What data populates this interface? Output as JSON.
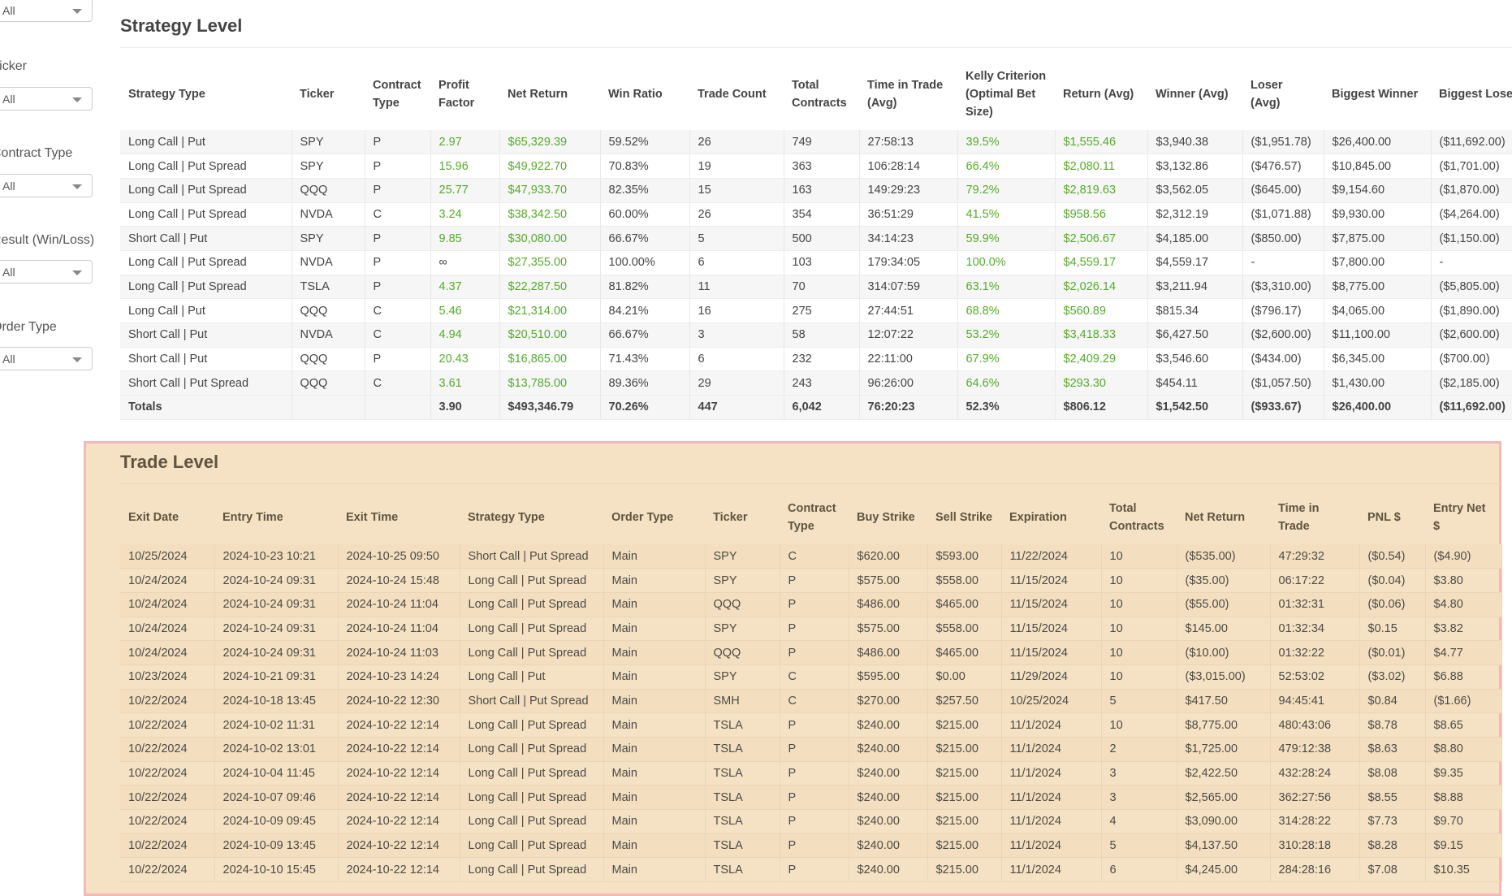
{
  "sidebar": {
    "filters": [
      {
        "label": "",
        "value": "All"
      },
      {
        "label": "Ticker",
        "value": "All"
      },
      {
        "label": "Contract Type",
        "value": "All"
      },
      {
        "label": "Result (Win/Loss)",
        "value": "All"
      },
      {
        "label": "Order Type",
        "value": "All"
      }
    ]
  },
  "strategy": {
    "title": "Strategy Level",
    "columns": [
      "Strategy Type",
      "Ticker",
      "Contract Type",
      "Profit Factor",
      "Net Return",
      "Win Ratio",
      "Trade Count",
      "Total Contracts",
      "Time in Trade (Avg)",
      "Kelly Criterion (Optimal Bet Size)",
      "Return (Avg)",
      "Winner (Avg)",
      "Loser (Avg)",
      "Biggest Winner",
      "Biggest Loser"
    ],
    "rows": [
      [
        "Long Call | Put",
        "SPY",
        "P",
        "2.97",
        "$65,329.39",
        "59.52%",
        "26",
        "749",
        "27:58:13",
        "39.5%",
        "$1,555.46",
        "$3,940.38",
        "($1,951.78)",
        "$26,400.00",
        "($11,692.00)"
      ],
      [
        "Long Call | Put Spread",
        "SPY",
        "P",
        "15.96",
        "$49,922.70",
        "70.83%",
        "19",
        "363",
        "106:28:14",
        "66.4%",
        "$2,080.11",
        "$3,132.86",
        "($476.57)",
        "$10,845.00",
        "($1,701.00)"
      ],
      [
        "Long Call | Put Spread",
        "QQQ",
        "P",
        "25.77",
        "$47,933.70",
        "82.35%",
        "15",
        "163",
        "149:29:23",
        "79.2%",
        "$2,819.63",
        "$3,562.05",
        "($645.00)",
        "$9,154.60",
        "($1,870.00)"
      ],
      [
        "Long Call | Put Spread",
        "NVDA",
        "C",
        "3.24",
        "$38,342.50",
        "60.00%",
        "26",
        "354",
        "36:51:29",
        "41.5%",
        "$958.56",
        "$2,312.19",
        "($1,071.88)",
        "$9,930.00",
        "($4,264.00)"
      ],
      [
        "Short Call | Put",
        "SPY",
        "P",
        "9.85",
        "$30,080.00",
        "66.67%",
        "5",
        "500",
        "34:14:23",
        "59.9%",
        "$2,506.67",
        "$4,185.00",
        "($850.00)",
        "$7,875.00",
        "($1,150.00)"
      ],
      [
        "Long Call | Put Spread",
        "NVDA",
        "P",
        "∞",
        "$27,355.00",
        "100.00%",
        "6",
        "103",
        "179:34:05",
        "100.0%",
        "$4,559.17",
        "$4,559.17",
        "-",
        "$7,800.00",
        "-"
      ],
      [
        "Long Call | Put Spread",
        "TSLA",
        "P",
        "4.37",
        "$22,287.50",
        "81.82%",
        "11",
        "70",
        "314:07:59",
        "63.1%",
        "$2,026.14",
        "$3,211.94",
        "($3,310.00)",
        "$8,775.00",
        "($5,805.00)"
      ],
      [
        "Long Call | Put",
        "QQQ",
        "C",
        "5.46",
        "$21,314.00",
        "84.21%",
        "16",
        "275",
        "27:44:51",
        "68.8%",
        "$560.89",
        "$815.34",
        "($796.17)",
        "$4,065.00",
        "($1,890.00)"
      ],
      [
        "Short Call | Put",
        "NVDA",
        "C",
        "4.94",
        "$20,510.00",
        "66.67%",
        "3",
        "58",
        "12:07:22",
        "53.2%",
        "$3,418.33",
        "$6,427.50",
        "($2,600.00)",
        "$11,100.00",
        "($2,600.00)"
      ],
      [
        "Short Call | Put",
        "QQQ",
        "P",
        "20.43",
        "$16,865.00",
        "71.43%",
        "6",
        "232",
        "22:11:00",
        "67.9%",
        "$2,409.29",
        "$3,546.60",
        "($434.00)",
        "$6,345.00",
        "($700.00)"
      ],
      [
        "Short Call | Put Spread",
        "QQQ",
        "C",
        "3.61",
        "$13,785.00",
        "89.36%",
        "29",
        "243",
        "96:26:00",
        "64.6%",
        "$293.30",
        "$454.11",
        "($1,057.50)",
        "$1,430.00",
        "($2,185.00)"
      ]
    ],
    "totals": [
      "Totals",
      "",
      "",
      "3.90",
      "$493,346.79",
      "70.26%",
      "447",
      "6,042",
      "76:20:23",
      "52.3%",
      "$806.12",
      "$1,542.50",
      "($933.67)",
      "$26,400.00",
      "($11,692.00)"
    ]
  },
  "trade": {
    "title": "Trade Level",
    "columns": [
      "Exit Date",
      "Entry Time",
      "Exit Time",
      "Strategy Type",
      "Order Type",
      "Ticker",
      "Contract Type",
      "Buy Strike",
      "Sell Strike",
      "Expiration",
      "Total Contracts",
      "Net Return",
      "Time in Trade",
      "PNL $",
      "Entry Net $"
    ],
    "rows": [
      [
        "10/25/2024",
        "2024-10-23 10:21",
        "2024-10-25 09:50",
        "Short Call | Put Spread",
        "Main",
        "SPY",
        "C",
        "$620.00",
        "$593.00",
        "11/22/2024",
        "10",
        "($535.00)",
        "47:29:32",
        "($0.54)",
        "($4.90)"
      ],
      [
        "10/24/2024",
        "2024-10-24 09:31",
        "2024-10-24 15:48",
        "Long Call | Put Spread",
        "Main",
        "SPY",
        "P",
        "$575.00",
        "$558.00",
        "11/15/2024",
        "10",
        "($35.00)",
        "06:17:22",
        "($0.04)",
        "$3.80"
      ],
      [
        "10/24/2024",
        "2024-10-24 09:31",
        "2024-10-24 11:04",
        "Long Call | Put Spread",
        "Main",
        "QQQ",
        "P",
        "$486.00",
        "$465.00",
        "11/15/2024",
        "10",
        "($55.00)",
        "01:32:31",
        "($0.06)",
        "$4.80"
      ],
      [
        "10/24/2024",
        "2024-10-24 09:31",
        "2024-10-24 11:04",
        "Long Call | Put Spread",
        "Main",
        "SPY",
        "P",
        "$575.00",
        "$558.00",
        "11/15/2024",
        "10",
        "$145.00",
        "01:32:34",
        "$0.15",
        "$3.82"
      ],
      [
        "10/24/2024",
        "2024-10-24 09:31",
        "2024-10-24 11:03",
        "Long Call | Put Spread",
        "Main",
        "QQQ",
        "P",
        "$486.00",
        "$465.00",
        "11/15/2024",
        "10",
        "($10.00)",
        "01:32:22",
        "($0.01)",
        "$4.77"
      ],
      [
        "10/23/2024",
        "2024-10-21 09:31",
        "2024-10-23 14:24",
        "Long Call | Put",
        "Main",
        "SPY",
        "C",
        "$595.00",
        "$0.00",
        "11/29/2024",
        "10",
        "($3,015.00)",
        "52:53:02",
        "($3.02)",
        "$6.88"
      ],
      [
        "10/22/2024",
        "2024-10-18 13:45",
        "2024-10-22 12:30",
        "Short Call | Put Spread",
        "Main",
        "SMH",
        "C",
        "$270.00",
        "$257.50",
        "10/25/2024",
        "5",
        "$417.50",
        "94:45:41",
        "$0.84",
        "($1.66)"
      ],
      [
        "10/22/2024",
        "2024-10-02 11:31",
        "2024-10-22 12:14",
        "Long Call | Put Spread",
        "Main",
        "TSLA",
        "P",
        "$240.00",
        "$215.00",
        "11/1/2024",
        "10",
        "$8,775.00",
        "480:43:06",
        "$8.78",
        "$8.65"
      ],
      [
        "10/22/2024",
        "2024-10-02 13:01",
        "2024-10-22 12:14",
        "Long Call | Put Spread",
        "Main",
        "TSLA",
        "P",
        "$240.00",
        "$215.00",
        "11/1/2024",
        "2",
        "$1,725.00",
        "479:12:38",
        "$8.63",
        "$8.80"
      ],
      [
        "10/22/2024",
        "2024-10-04 11:45",
        "2024-10-22 12:14",
        "Long Call | Put Spread",
        "Main",
        "TSLA",
        "P",
        "$240.00",
        "$215.00",
        "11/1/2024",
        "3",
        "$2,422.50",
        "432:28:24",
        "$8.08",
        "$9.35"
      ],
      [
        "10/22/2024",
        "2024-10-07 09:46",
        "2024-10-22 12:14",
        "Long Call | Put Spread",
        "Main",
        "TSLA",
        "P",
        "$240.00",
        "$215.00",
        "11/1/2024",
        "3",
        "$2,565.00",
        "362:27:56",
        "$8.55",
        "$8.88"
      ],
      [
        "10/22/2024",
        "2024-10-09 09:45",
        "2024-10-22 12:14",
        "Long Call | Put Spread",
        "Main",
        "TSLA",
        "P",
        "$240.00",
        "$215.00",
        "11/1/2024",
        "4",
        "$3,090.00",
        "314:28:22",
        "$7.73",
        "$9.70"
      ],
      [
        "10/22/2024",
        "2024-10-09 13:45",
        "2024-10-22 12:14",
        "Long Call | Put Spread",
        "Main",
        "TSLA",
        "P",
        "$240.00",
        "$215.00",
        "11/1/2024",
        "5",
        "$4,137.50",
        "310:28:18",
        "$8.28",
        "$9.15"
      ],
      [
        "10/22/2024",
        "2024-10-10 15:45",
        "2024-10-22 12:14",
        "Long Call | Put Spread",
        "Main",
        "TSLA",
        "P",
        "$240.00",
        "$215.00",
        "11/1/2024",
        "6",
        "$4,245.00",
        "284:28:16",
        "$7.08",
        "$10.35"
      ]
    ]
  },
  "colors": {
    "positive": "#55aa2d",
    "negative": "#d6522a",
    "panel_bg": "#f5e2c4",
    "panel_border": "#f1b9b7"
  }
}
